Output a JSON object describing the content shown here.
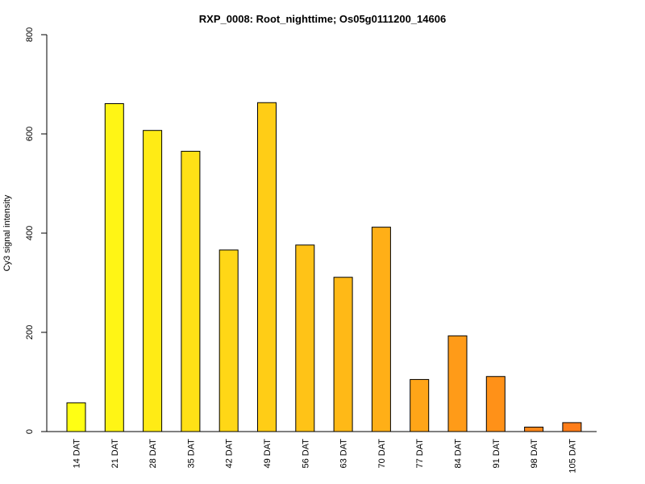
{
  "chart_data": {
    "type": "bar",
    "title": "RXP_0008: Root_nighttime; Os05g0111200_14606",
    "ylabel": "Cy3 signal intensity",
    "xlabel": "",
    "ylim": [
      0,
      800
    ],
    "y_ticks": [
      0,
      200,
      400,
      600,
      800
    ],
    "categories": [
      "14 DAT",
      "21 DAT",
      "28 DAT",
      "35 DAT",
      "42 DAT",
      "49 DAT",
      "56 DAT",
      "63 DAT",
      "70 DAT",
      "77 DAT",
      "84 DAT",
      "91 DAT",
      "98 DAT",
      "105 DAT"
    ],
    "values": [
      58,
      661,
      607,
      565,
      366,
      663,
      376,
      311,
      412,
      105,
      193,
      111,
      9,
      18
    ],
    "colors": [
      "#FFFF14",
      "#FFF515",
      "#FFEB15",
      "#FFE116",
      "#FFD716",
      "#FFCD16",
      "#FFC317",
      "#FFB917",
      "#FFAF17",
      "#FFA518",
      "#FF9B18",
      "#FF9118",
      "#FF8719",
      "#FF7D19"
    ],
    "grid": false,
    "legend": "none"
  }
}
